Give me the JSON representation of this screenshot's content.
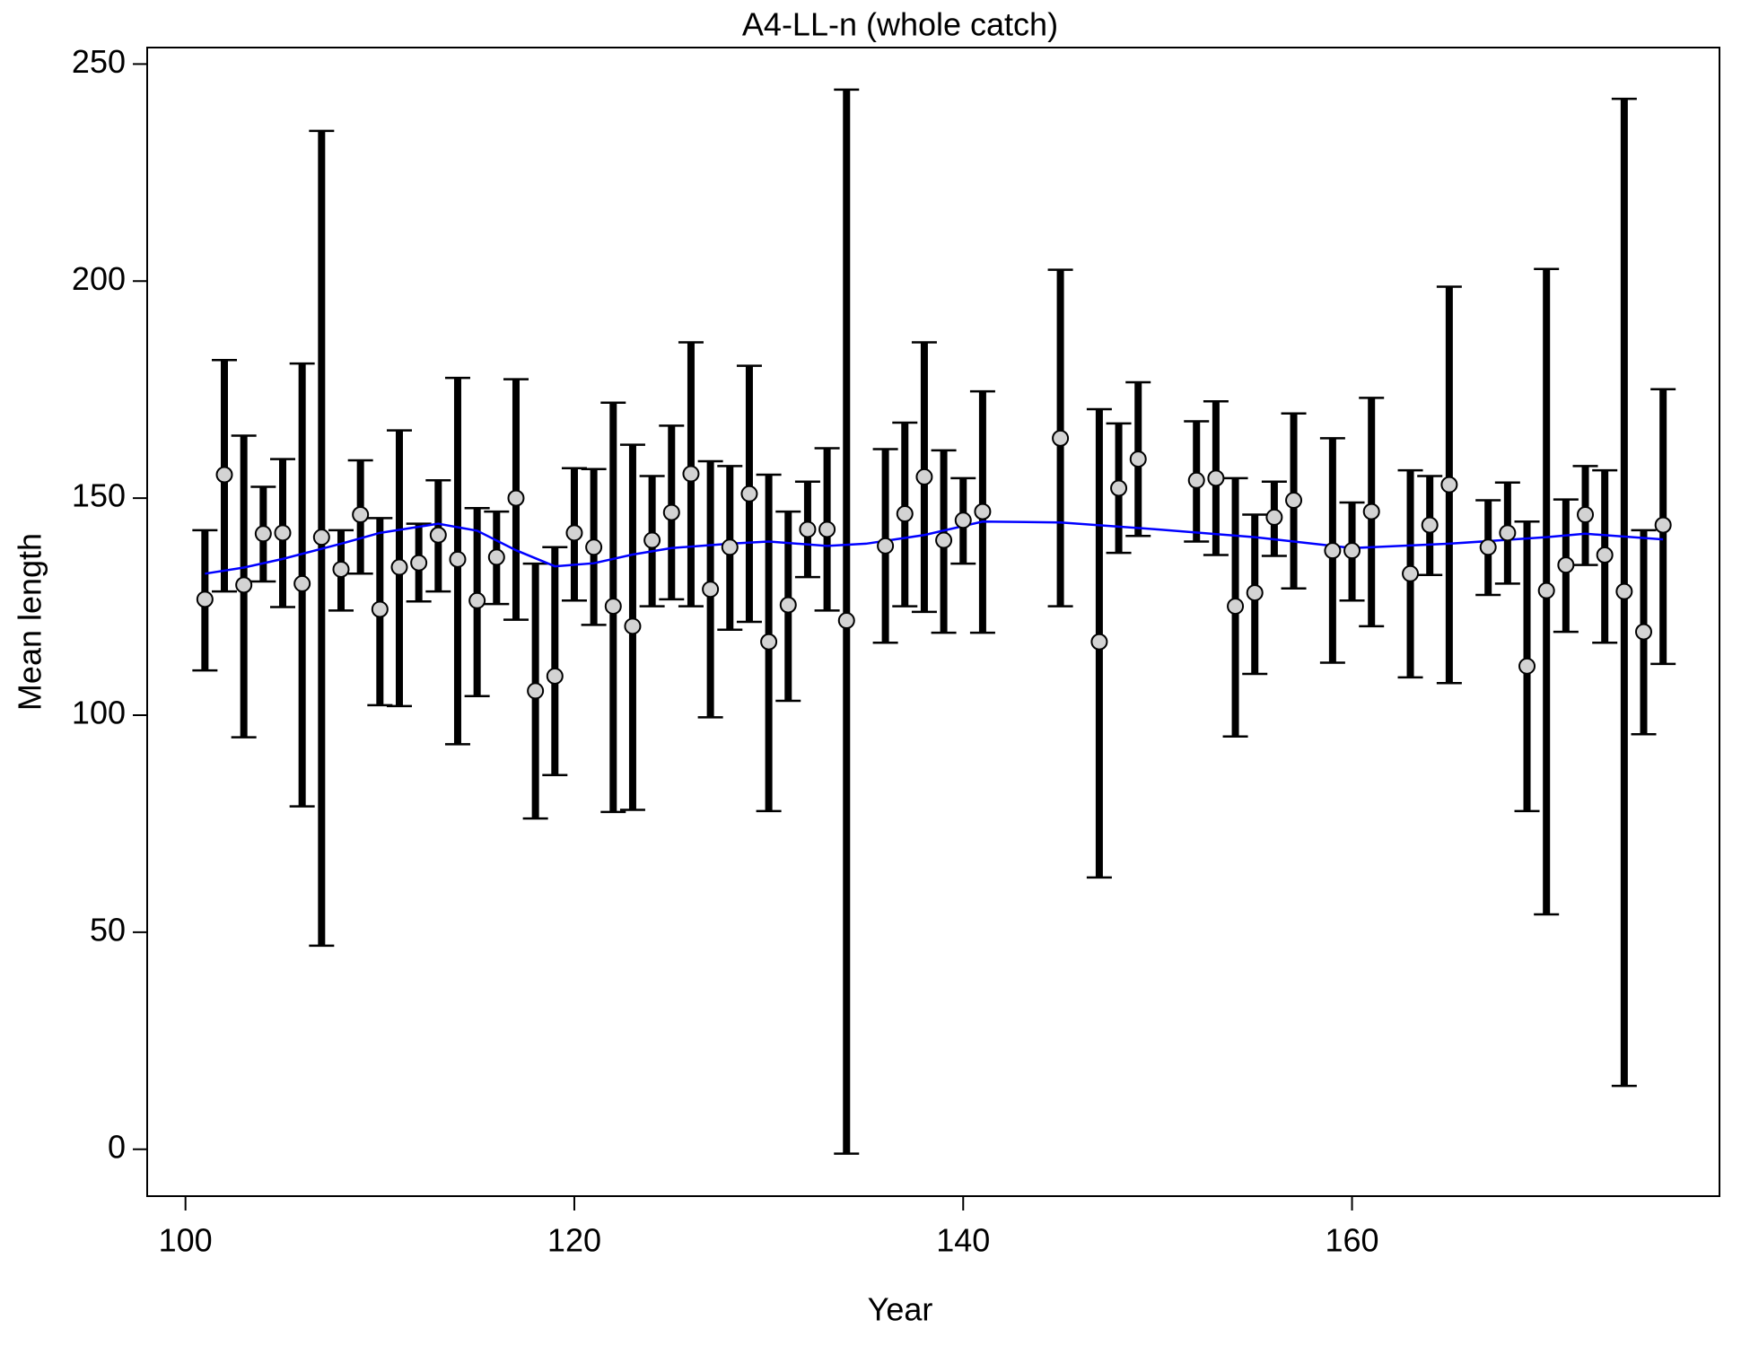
{
  "chart_data": {
    "type": "errorbar",
    "title": "A4-LL-n (whole catch)",
    "xlabel": "Year",
    "ylabel": "Mean length",
    "xlim": [
      98.03,
      178.9
    ],
    "ylim": [
      -10.8,
      253.8
    ],
    "xticks": [
      100,
      120,
      140,
      160
    ],
    "yticks": [
      0,
      50,
      100,
      150,
      200,
      250
    ],
    "grid": false,
    "point_color": "#d3d3d3",
    "bar_color": "#000000",
    "x": [
      101,
      102,
      103,
      104,
      105,
      106,
      107,
      108,
      109,
      110,
      111,
      112,
      113,
      114,
      115,
      116,
      117,
      118,
      119,
      120,
      121,
      122,
      123,
      124,
      125,
      126,
      127,
      128,
      129,
      130,
      131,
      132,
      133,
      134,
      136,
      137,
      138,
      139,
      140,
      141,
      145,
      147,
      148,
      149,
      152,
      153,
      154,
      155,
      156,
      157,
      159,
      160,
      161,
      163,
      164,
      165,
      167,
      168,
      169,
      170,
      171,
      172,
      173,
      174,
      175,
      176
    ],
    "values": [
      126.7,
      155.4,
      130,
      141.8,
      142,
      130.3,
      141,
      133.6,
      146.2,
      124.4,
      134.1,
      135.1,
      141.5,
      135.9,
      126.4,
      136.4,
      150,
      105.6,
      109,
      142,
      138.7,
      125.1,
      120.5,
      140.3,
      146.7,
      155.6,
      129,
      138.7,
      151,
      116.9,
      125.4,
      142.8,
      142.8,
      121.8,
      139,
      146.4,
      154.9,
      140.3,
      144.9,
      146.9,
      163.8,
      116.9,
      152.3,
      159,
      154.1,
      154.6,
      125.1,
      128.2,
      145.6,
      149.5,
      137.9,
      137.9,
      146.9,
      132.6,
      143.8,
      153.1,
      138.7,
      142,
      111.3,
      128.7,
      134.6,
      146.2,
      136.9,
      128.5,
      119.2,
      143.8
    ],
    "lower": [
      110.3,
      128.5,
      94.9,
      130.8,
      124.9,
      79,
      46.9,
      124.1,
      132.6,
      102.3,
      102.1,
      126.2,
      128.5,
      93.3,
      104.4,
      125.6,
      122,
      76.2,
      86.2,
      126.4,
      120.8,
      77.7,
      78.2,
      125.1,
      126.7,
      125.1,
      99.5,
      119.7,
      121.5,
      77.9,
      103.3,
      131.8,
      124.1,
      -1,
      116.7,
      125.1,
      123.8,
      119,
      134.9,
      119,
      125.1,
      62.6,
      137.4,
      141.3,
      140,
      136.9,
      95.1,
      109.5,
      136.7,
      129.2,
      112.1,
      126.4,
      120.5,
      108.7,
      132.3,
      107.4,
      127.7,
      130.3,
      77.9,
      54.1,
      119.2,
      134.6,
      116.7,
      14.6,
      95.6,
      111.8
    ],
    "upper": [
      142.6,
      181.8,
      164.4,
      152.6,
      159,
      181,
      234.6,
      142.6,
      158.7,
      145.4,
      165.6,
      144.1,
      154.1,
      177.7,
      147.7,
      146.9,
      177.4,
      134.9,
      138.7,
      156.9,
      156.7,
      172,
      162.3,
      155.1,
      166.7,
      185.9,
      158.5,
      157.4,
      180.5,
      155.4,
      146.9,
      153.8,
      161.5,
      244.1,
      161.3,
      167.4,
      185.9,
      161,
      154.6,
      174.6,
      202.6,
      170.5,
      167.2,
      176.7,
      167.7,
      172.3,
      154.6,
      146.2,
      153.8,
      169.5,
      163.8,
      149,
      173.1,
      156.4,
      155.1,
      198.7,
      149.5,
      153.6,
      144.6,
      202.8,
      149.7,
      157.4,
      156.4,
      242,
      142.6,
      175.1
    ],
    "smooth": {
      "color": "#0000ff",
      "x": [
        101,
        103,
        105,
        108,
        110,
        113,
        115,
        117,
        119,
        121,
        123,
        125,
        128,
        130,
        133,
        135,
        138,
        141,
        145,
        150,
        155,
        160,
        165,
        170,
        172,
        176
      ],
      "values": [
        132.6,
        134,
        136,
        139.5,
        142,
        144.1,
        142.5,
        138,
        134.3,
        135,
        137,
        138.5,
        139.5,
        140,
        139,
        139.5,
        141.5,
        144.6,
        144.4,
        142.8,
        141,
        138.5,
        139.5,
        141,
        141.8,
        140.5
      ]
    }
  }
}
